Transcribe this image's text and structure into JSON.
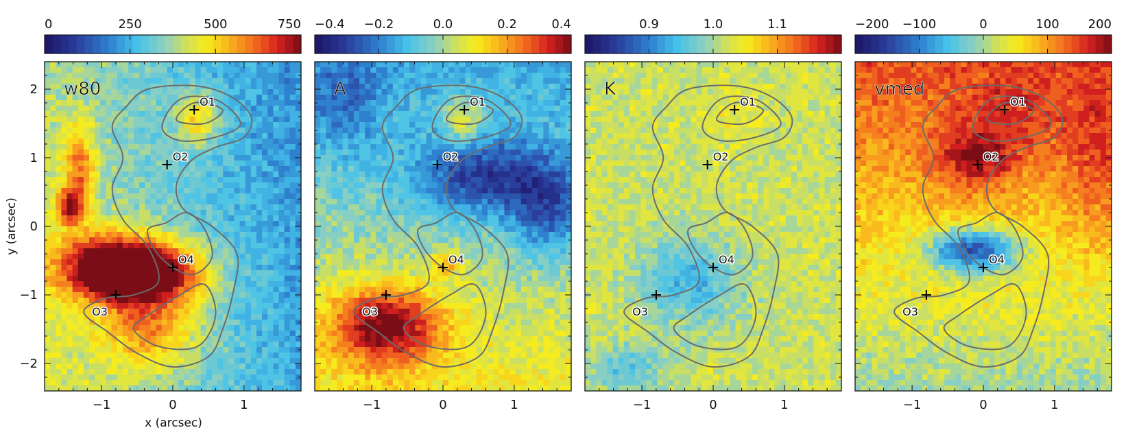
{
  "figure": {
    "xlabel": "x (arcsec)",
    "ylabel": "y (arcsec)"
  },
  "axes": {
    "x_range": [
      -1.8,
      1.8
    ],
    "y_range": [
      -2.4,
      2.4
    ],
    "x_ticks": [
      -1,
      0,
      1
    ],
    "x_tick_labels": [
      "−1",
      "0",
      "1"
    ],
    "y_ticks": [
      -2,
      -1,
      0,
      1,
      2
    ],
    "y_tick_labels": [
      "−2",
      "−1",
      "0",
      "1",
      "2"
    ]
  },
  "chart_data": [
    {
      "type": "heatmap",
      "label": "w80",
      "colorbar": {
        "range": [
          0,
          750
        ],
        "ticks": [
          0,
          250,
          500,
          750
        ],
        "tick_labels": [
          "0",
          "250",
          "500",
          "750"
        ]
      },
      "blobs": [
        {
          "x": -0.8,
          "y": -0.6,
          "sx": 0.55,
          "sy": 0.33,
          "amp": 470
        },
        {
          "x": -0.2,
          "y": -0.7,
          "sx": 0.55,
          "sy": 0.3,
          "amp": 300
        },
        {
          "x": -1.45,
          "y": 0.3,
          "sx": 0.12,
          "sy": 0.18,
          "amp": 300
        },
        {
          "x": -1.3,
          "y": 0.8,
          "sx": 0.15,
          "sy": 0.5,
          "amp": 220
        },
        {
          "x": 0.35,
          "y": 1.55,
          "sx": 0.22,
          "sy": 0.28,
          "amp": 200
        },
        {
          "x": -0.3,
          "y": -1.5,
          "sx": 0.5,
          "sy": 0.4,
          "amp": 220
        }
      ],
      "base": 320,
      "gradient": {
        "x": -55,
        "y": -10
      }
    },
    {
      "type": "heatmap",
      "label": "A",
      "colorbar": {
        "range": [
          -0.4,
          0.4
        ],
        "ticks": [
          -0.4,
          -0.2,
          0.0,
          0.2,
          0.4
        ],
        "tick_labels": [
          "−0.4",
          "−0.2",
          "0.0",
          "0.2",
          "0.4"
        ]
      },
      "blobs": [
        {
          "x": -0.8,
          "y": -1.45,
          "sx": 0.55,
          "sy": 0.4,
          "amp": 0.38
        },
        {
          "x": 0.3,
          "y": 1.55,
          "sx": 0.2,
          "sy": 0.25,
          "amp": 0.18
        },
        {
          "x": 0.05,
          "y": -0.55,
          "sx": 0.15,
          "sy": 0.15,
          "amp": 0.15
        },
        {
          "x": 0.6,
          "y": 0.7,
          "sx": 0.7,
          "sy": 0.4,
          "amp": -0.25
        },
        {
          "x": 1.5,
          "y": 0.2,
          "sx": 0.4,
          "sy": 0.5,
          "amp": -0.2
        },
        {
          "x": -1.4,
          "y": 1.8,
          "sx": 0.4,
          "sy": 0.5,
          "amp": -0.12
        }
      ],
      "base": -0.02,
      "gradient": {
        "x": 0,
        "y": -0.05
      }
    },
    {
      "type": "heatmap",
      "label": "K",
      "colorbar": {
        "range": [
          0.8,
          1.2
        ],
        "ticks": [
          0.9,
          1.0,
          1.1
        ],
        "tick_labels": [
          "0.9",
          "1.0",
          "1.1"
        ]
      },
      "blobs": [
        {
          "x": -0.3,
          "y": -0.8,
          "sx": 0.5,
          "sy": 0.45,
          "amp": -0.08
        },
        {
          "x": -1.2,
          "y": -2.1,
          "sx": 0.35,
          "sy": 0.25,
          "amp": -0.07
        },
        {
          "x": 0.3,
          "y": 1.6,
          "sx": 0.3,
          "sy": 0.3,
          "amp": 0.02
        }
      ],
      "base": 1.02,
      "gradient": {
        "x": 0,
        "y": 0
      }
    },
    {
      "type": "heatmap",
      "label": "vmed",
      "colorbar": {
        "range": [
          -200,
          200
        ],
        "ticks": [
          -200,
          -100,
          0,
          100,
          200
        ],
        "tick_labels": [
          "−200",
          "−100",
          "0",
          "100",
          "200"
        ]
      },
      "blobs": [
        {
          "x": -0.1,
          "y": 0.95,
          "sx": 0.4,
          "sy": 0.3,
          "amp": 90
        },
        {
          "x": -0.15,
          "y": -0.35,
          "sx": 0.45,
          "sy": 0.22,
          "amp": -190
        },
        {
          "x": 0.3,
          "y": 1.6,
          "sx": 0.5,
          "sy": 0.4,
          "amp": 40
        },
        {
          "x": 1.6,
          "y": 1.0,
          "sx": 0.35,
          "sy": 0.8,
          "amp": 50
        }
      ],
      "base": 70,
      "gradient": {
        "x": 0,
        "y": 30
      }
    }
  ],
  "markers": [
    {
      "label": "O1",
      "x": 0.3,
      "y": 1.7
    },
    {
      "label": "O2",
      "x": -0.08,
      "y": 0.9
    },
    {
      "label": "O3",
      "x": -0.8,
      "y": -1.0
    },
    {
      "label": "O4",
      "x": 0.0,
      "y": -0.6
    }
  ]
}
